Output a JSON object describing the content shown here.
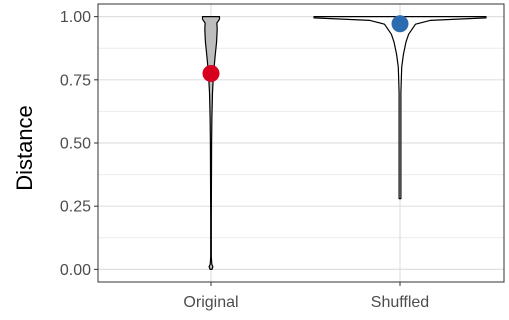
{
  "chart_data": {
    "type": "violin",
    "title": "",
    "xlabel": "",
    "ylabel": "Distance",
    "ylim": [
      -0.05,
      1.05
    ],
    "grid": true,
    "categories": [
      "Original",
      "Shuffled"
    ],
    "yticks": [
      0.0,
      0.25,
      0.5,
      0.75,
      1.0
    ],
    "ytick_labels": [
      "0.00",
      "0.25",
      "0.50",
      "0.75",
      "1.00"
    ],
    "series": [
      {
        "category": "Original",
        "fill": "#bdbdbd",
        "point_color": "#d7001e",
        "point_value": 0.775,
        "min": 0.0,
        "max": 1.0,
        "density": [
          [
            0.0,
            0.06
          ],
          [
            0.01,
            0.12
          ],
          [
            0.02,
            0.05
          ],
          [
            0.05,
            0.02
          ],
          [
            0.2,
            0.02
          ],
          [
            0.4,
            0.03
          ],
          [
            0.5,
            0.04
          ],
          [
            0.6,
            0.06
          ],
          [
            0.7,
            0.1
          ],
          [
            0.75,
            0.14
          ],
          [
            0.8,
            0.2
          ],
          [
            0.85,
            0.28
          ],
          [
            0.9,
            0.36
          ],
          [
            0.95,
            0.4
          ],
          [
            0.975,
            0.38
          ],
          [
            0.99,
            0.55
          ],
          [
            1.0,
            0.55
          ]
        ]
      },
      {
        "category": "Shuffled",
        "fill": "#ffffff",
        "point_color": "#2b6cb0",
        "point_value": 0.972,
        "min": 0.28,
        "max": 1.0,
        "density": [
          [
            0.28,
            0.01
          ],
          [
            0.5,
            0.01
          ],
          [
            0.7,
            0.01
          ],
          [
            0.8,
            0.02
          ],
          [
            0.85,
            0.04
          ],
          [
            0.9,
            0.07
          ],
          [
            0.93,
            0.1
          ],
          [
            0.95,
            0.14
          ],
          [
            0.97,
            0.18
          ],
          [
            0.985,
            0.35
          ],
          [
            0.995,
            1.0
          ],
          [
            1.0,
            1.0
          ]
        ]
      }
    ]
  }
}
